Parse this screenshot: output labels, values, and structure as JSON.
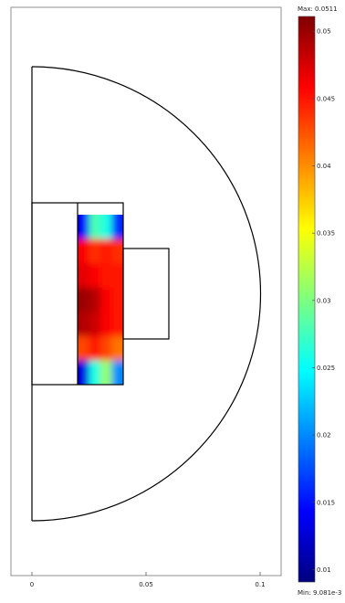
{
  "chart_data": {
    "type": "heatmap",
    "x_axis": {
      "ticks": [
        0,
        0.05,
        0.1
      ],
      "tick_labels": [
        "0",
        "0.05",
        "0.1"
      ]
    },
    "colorbar": {
      "max_label": "Max: 0.0511",
      "min_label": "Min: 9.081e-3",
      "max": 0.0511,
      "min": 0.009081,
      "ticks": [
        0.05,
        0.045,
        0.04,
        0.035,
        0.03,
        0.025,
        0.02,
        0.015,
        0.01
      ],
      "tick_labels": [
        "0.05",
        "0.045",
        "0.04",
        "0.035",
        "0.03",
        "0.025",
        "0.02",
        "0.015",
        "0.01"
      ],
      "colormap": "jet",
      "colors": [
        "#00007f",
        "#0000ff",
        "#007fff",
        "#00ffff",
        "#7fff7f",
        "#ffff00",
        "#ff7f00",
        "#ff0000",
        "#7f0000"
      ]
    },
    "field_grid": {
      "rows": 7,
      "cols": 4,
      "values": [
        [
          0.014,
          0.028,
          0.026,
          0.016
        ],
        [
          0.046,
          0.044,
          0.045,
          0.044
        ],
        [
          0.047,
          0.046,
          0.045,
          0.045
        ],
        [
          0.05,
          0.049,
          0.046,
          0.045
        ],
        [
          0.049,
          0.048,
          0.046,
          0.045
        ],
        [
          0.043,
          0.045,
          0.043,
          0.041
        ],
        [
          0.013,
          0.026,
          0.031,
          0.02
        ]
      ]
    }
  }
}
